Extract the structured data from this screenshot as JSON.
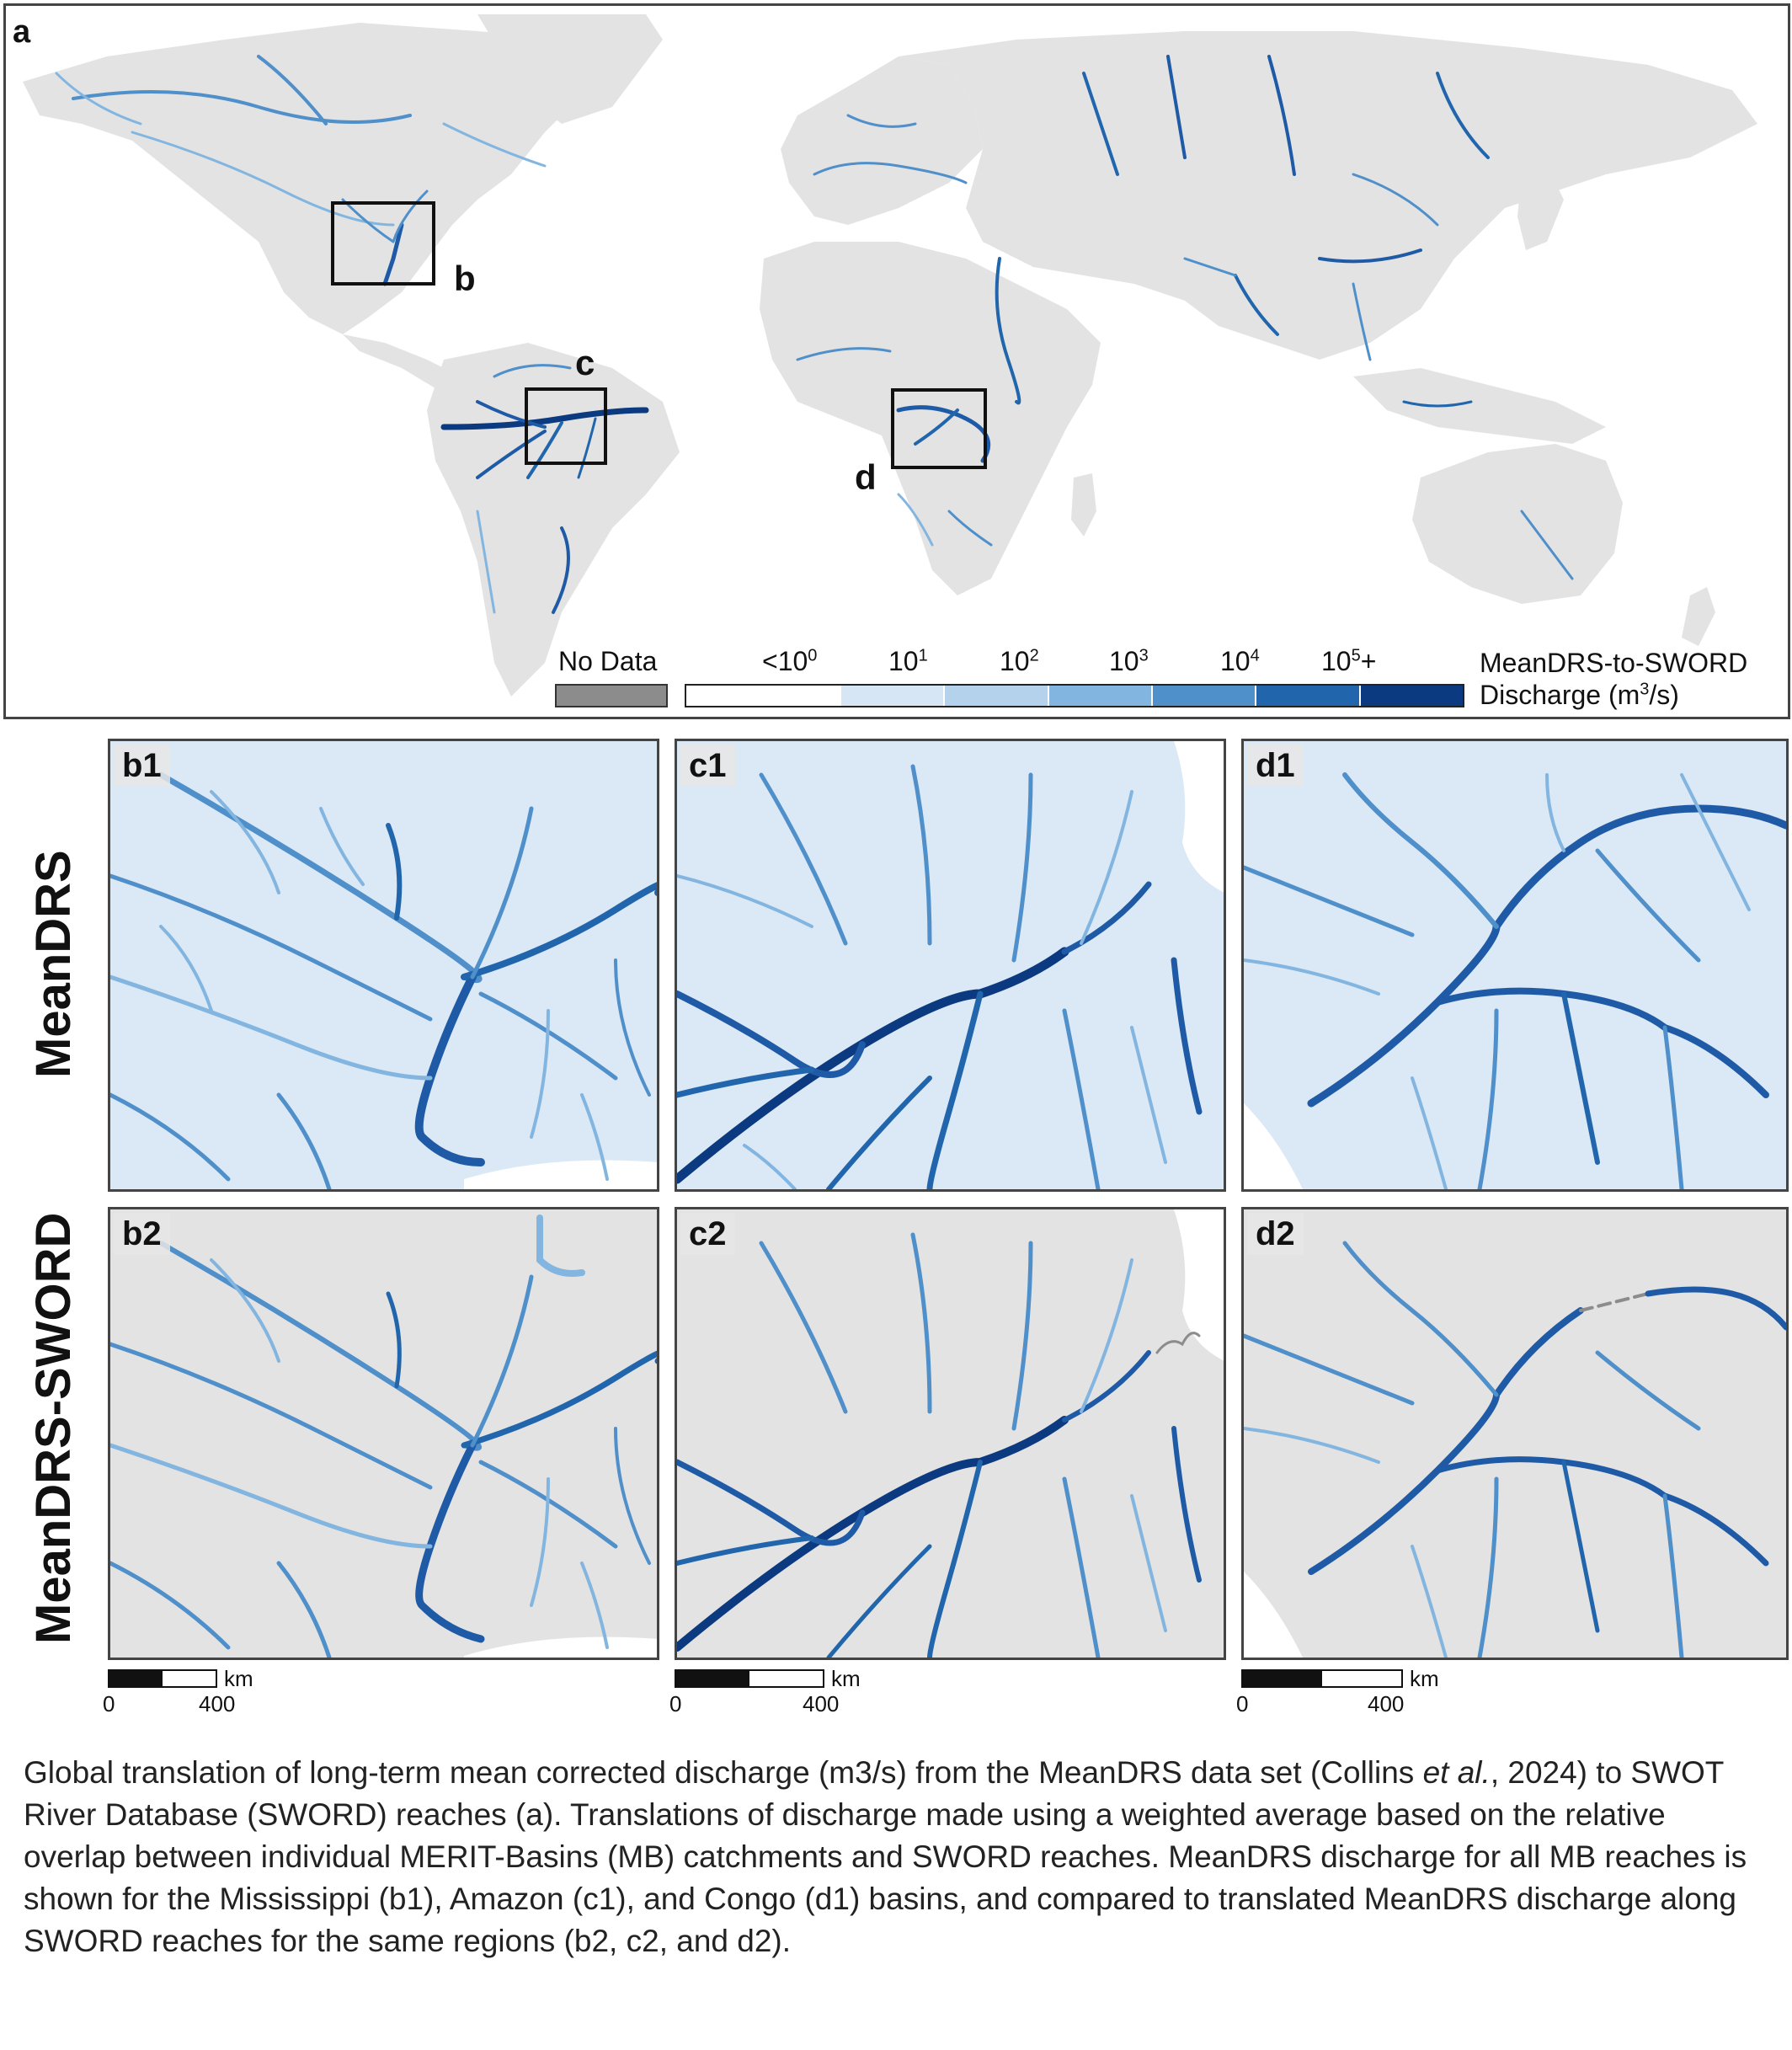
{
  "panel_a": {
    "label": "a",
    "inset_labels": [
      "b",
      "c",
      "d"
    ]
  },
  "legend": {
    "no_data_label": "No Data",
    "no_data_color": "#8c8c8c",
    "ticks": [
      "<10",
      "0",
      "10",
      "1",
      "10",
      "2",
      "10",
      "3",
      "10",
      "4",
      "10",
      "5+"
    ],
    "tick_labels": [
      {
        "base": "<10",
        "exp": "0"
      },
      {
        "base": "10",
        "exp": "1"
      },
      {
        "base": "10",
        "exp": "2"
      },
      {
        "base": "10",
        "exp": "3"
      },
      {
        "base": "10",
        "exp": "4"
      },
      {
        "base": "10",
        "exp": "5",
        "suffix": "+"
      }
    ],
    "colors": [
      "#ffffff",
      "#d7e6f5",
      "#b5d2ec",
      "#82b5df",
      "#4f8fca",
      "#2166ac",
      "#08306b"
    ],
    "title_line1": "MeanDRS-to-SWORD",
    "title_line2_pre": "Discharge (m",
    "title_line2_exp": "3",
    "title_line2_post": "/s)"
  },
  "row_labels": {
    "top": "MeanDRS",
    "bottom": "MeanDRS-SWORD"
  },
  "subpanels": {
    "b1": "b1",
    "c1": "c1",
    "d1": "d1",
    "b2": "b2",
    "c2": "c2",
    "d2": "d2"
  },
  "scalebar": {
    "unit": "km",
    "start": "0",
    "end": "400"
  },
  "caption": {
    "part1": "Global translation of long-term mean corrected discharge (m3/s) from the MeanDRS data set (Collins ",
    "et_al": "et al.",
    "part2": ", 2024) to SWOT River Database (SWORD) reaches (a). Translations of discharge made using a weighted average based on the relative overlap between individual MERIT-Basins (MB) catchments and SWORD reaches. MeanDRS discharge for all MB reaches is shown for the Mississippi (b1), Amazon (c1), and Congo (d1) basins, and compared to translated MeanDRS discharge along SWORD reaches for the same regions (b2, c2, and d2)."
  },
  "colors": {
    "land": "#e3e3e3",
    "river_light": "#b5d2ec",
    "river_mid": "#4f8fca",
    "river_dark": "#1f5aa6",
    "river_darkest": "#0b3a80",
    "frame": "#444444"
  }
}
